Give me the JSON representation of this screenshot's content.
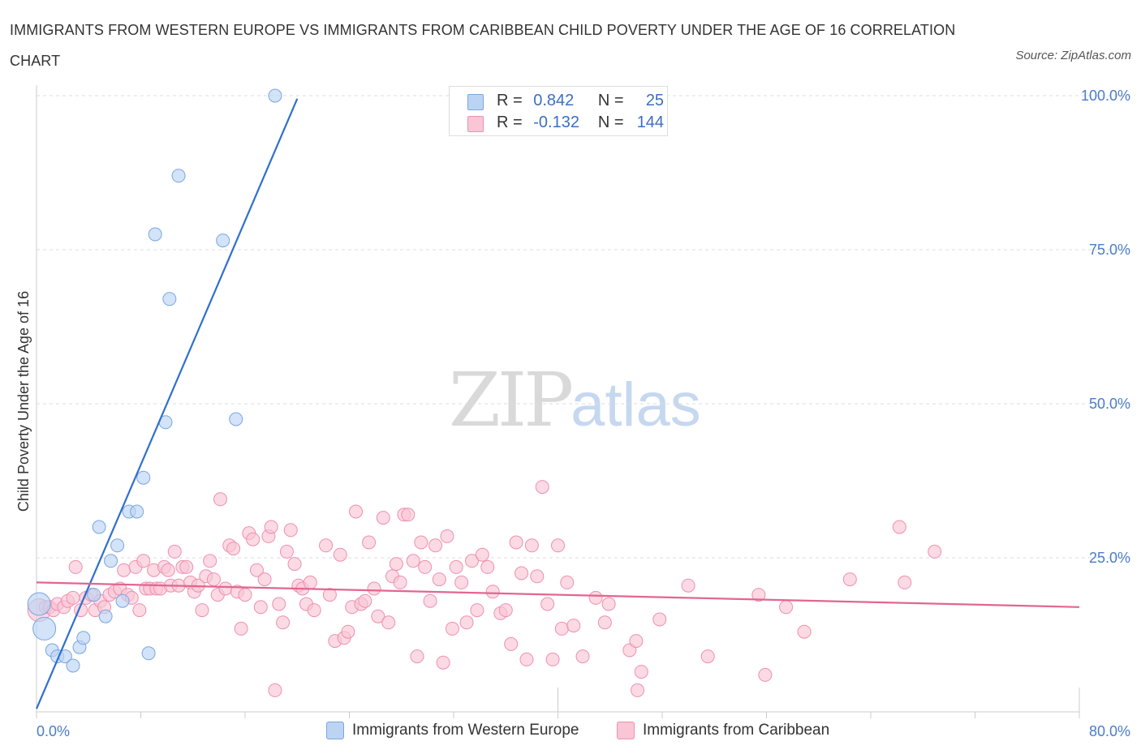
{
  "title": "IMMIGRANTS FROM WESTERN EUROPE VS IMMIGRANTS FROM CARIBBEAN CHILD POVERTY UNDER THE AGE OF 16 CORRELATION CHART",
  "source": "Source: ZipAtlas.com",
  "watermark": {
    "zip": "ZIP",
    "atlas": "atlas"
  },
  "legend_top": [
    {
      "r_label": "R =",
      "r_value": "0.842",
      "n_label": "N =",
      "n_value": "25"
    },
    {
      "r_label": "R =",
      "r_value": "-0.132",
      "n_label": "N =",
      "n_value": "144"
    }
  ],
  "colors": {
    "blue_fill": "#bcd4f4",
    "blue_stroke": "#7aa6e0",
    "blue_line": "#2f6fcf",
    "pink_fill": "#f9c6d6",
    "pink_stroke": "#ee8fb0",
    "pink_line": "#e2668f",
    "grid": "#dddddd",
    "tick_text": "#4a7cc9"
  },
  "chart_data": {
    "type": "scatter",
    "title": "IMMIGRANTS FROM WESTERN EUROPE VS IMMIGRANTS FROM CARIBBEAN CHILD POVERTY UNDER THE AGE OF 16 CORRELATION CHART",
    "xlabel": "",
    "ylabel": "Child Poverty Under the Age of 16",
    "xlim": [
      0,
      80
    ],
    "ylim": [
      0,
      100
    ],
    "x_tick_labels": [
      "0.0%",
      "80.0%"
    ],
    "y_tick_labels": [
      "25.0%",
      "50.0%",
      "75.0%",
      "100.0%"
    ],
    "y_ticks": [
      25,
      50,
      75,
      100
    ],
    "grid": "horizontal dashed",
    "legend_position": "bottom",
    "series": [
      {
        "name": "Immigrants from Western Europe",
        "color": "blue",
        "r": 0.842,
        "n": 25,
        "trend": {
          "x": [
            0,
            20
          ],
          "y": [
            0.5,
            99.5
          ]
        },
        "points": [
          {
            "x": 0.2,
            "y": 17.5,
            "big": true
          },
          {
            "x": 0.6,
            "y": 13.5,
            "big": true
          },
          {
            "x": 1.2,
            "y": 10
          },
          {
            "x": 1.6,
            "y": 9
          },
          {
            "x": 2.2,
            "y": 9
          },
          {
            "x": 2.8,
            "y": 7.5
          },
          {
            "x": 3.3,
            "y": 10.5
          },
          {
            "x": 3.6,
            "y": 12
          },
          {
            "x": 4.4,
            "y": 19
          },
          {
            "x": 4.8,
            "y": 30
          },
          {
            "x": 5.3,
            "y": 15.5
          },
          {
            "x": 5.7,
            "y": 24.5
          },
          {
            "x": 6.2,
            "y": 27
          },
          {
            "x": 6.6,
            "y": 18
          },
          {
            "x": 7.1,
            "y": 32.5
          },
          {
            "x": 7.7,
            "y": 32.5
          },
          {
            "x": 8.2,
            "y": 38
          },
          {
            "x": 8.6,
            "y": 9.5
          },
          {
            "x": 9.1,
            "y": 77.5
          },
          {
            "x": 9.9,
            "y": 47
          },
          {
            "x": 10.2,
            "y": 67
          },
          {
            "x": 10.9,
            "y": 87
          },
          {
            "x": 14.3,
            "y": 76.5
          },
          {
            "x": 15.3,
            "y": 47.5
          },
          {
            "x": 18.3,
            "y": 100
          }
        ]
      },
      {
        "name": "Immigrants from Caribbean",
        "color": "pink",
        "r": -0.132,
        "n": 144,
        "trend": {
          "x": [
            0,
            80
          ],
          "y": [
            21,
            17
          ]
        },
        "points": [
          {
            "x": 0.2,
            "y": 16.5,
            "big": true
          },
          {
            "x": 0.7,
            "y": 17
          },
          {
            "x": 1.0,
            "y": 17
          },
          {
            "x": 1.3,
            "y": 16.5
          },
          {
            "x": 1.6,
            "y": 17.5
          },
          {
            "x": 2.1,
            "y": 17
          },
          {
            "x": 2.4,
            "y": 18
          },
          {
            "x": 2.8,
            "y": 18.5
          },
          {
            "x": 3.0,
            "y": 23.5
          },
          {
            "x": 3.4,
            "y": 16.5
          },
          {
            "x": 3.8,
            "y": 18.5
          },
          {
            "x": 4.2,
            "y": 19
          },
          {
            "x": 4.5,
            "y": 16.5
          },
          {
            "x": 4.9,
            "y": 18
          },
          {
            "x": 5.2,
            "y": 17
          },
          {
            "x": 5.6,
            "y": 19
          },
          {
            "x": 6.0,
            "y": 19.5
          },
          {
            "x": 6.4,
            "y": 20
          },
          {
            "x": 6.7,
            "y": 23
          },
          {
            "x": 7.0,
            "y": 19
          },
          {
            "x": 7.3,
            "y": 18.5
          },
          {
            "x": 7.6,
            "y": 23.5
          },
          {
            "x": 7.9,
            "y": 16.5
          },
          {
            "x": 8.2,
            "y": 24.5
          },
          {
            "x": 8.4,
            "y": 20
          },
          {
            "x": 8.7,
            "y": 20
          },
          {
            "x": 9.0,
            "y": 23
          },
          {
            "x": 9.2,
            "y": 20
          },
          {
            "x": 9.5,
            "y": 20
          },
          {
            "x": 9.8,
            "y": 23.5
          },
          {
            "x": 10.1,
            "y": 23
          },
          {
            "x": 10.3,
            "y": 20.5
          },
          {
            "x": 10.6,
            "y": 26
          },
          {
            "x": 10.9,
            "y": 20.5
          },
          {
            "x": 11.2,
            "y": 23.5
          },
          {
            "x": 11.5,
            "y": 23.5
          },
          {
            "x": 11.8,
            "y": 21
          },
          {
            "x": 12.1,
            "y": 19.5
          },
          {
            "x": 12.4,
            "y": 20.5
          },
          {
            "x": 12.7,
            "y": 16.5
          },
          {
            "x": 13.0,
            "y": 22
          },
          {
            "x": 13.3,
            "y": 24.5
          },
          {
            "x": 13.6,
            "y": 21.5
          },
          {
            "x": 13.9,
            "y": 19
          },
          {
            "x": 14.1,
            "y": 34.5
          },
          {
            "x": 14.5,
            "y": 20
          },
          {
            "x": 14.8,
            "y": 27
          },
          {
            "x": 15.1,
            "y": 26.5
          },
          {
            "x": 15.4,
            "y": 19.5
          },
          {
            "x": 15.7,
            "y": 13.5
          },
          {
            "x": 16.0,
            "y": 19
          },
          {
            "x": 16.3,
            "y": 29
          },
          {
            "x": 16.6,
            "y": 28
          },
          {
            "x": 16.9,
            "y": 23
          },
          {
            "x": 17.2,
            "y": 17
          },
          {
            "x": 17.5,
            "y": 21.5
          },
          {
            "x": 17.8,
            "y": 28.5
          },
          {
            "x": 18.0,
            "y": 30
          },
          {
            "x": 18.3,
            "y": 3.5
          },
          {
            "x": 18.6,
            "y": 17.5
          },
          {
            "x": 18.9,
            "y": 14.5
          },
          {
            "x": 19.2,
            "y": 26
          },
          {
            "x": 19.5,
            "y": 29.5
          },
          {
            "x": 19.8,
            "y": 24
          },
          {
            "x": 20.1,
            "y": 20.5
          },
          {
            "x": 20.4,
            "y": 20
          },
          {
            "x": 20.7,
            "y": 17.5
          },
          {
            "x": 21.0,
            "y": 21
          },
          {
            "x": 21.3,
            "y": 16.5
          },
          {
            "x": 22.2,
            "y": 27
          },
          {
            "x": 22.5,
            "y": 19
          },
          {
            "x": 22.9,
            "y": 11.5
          },
          {
            "x": 23.3,
            "y": 25.5
          },
          {
            "x": 23.6,
            "y": 12
          },
          {
            "x": 23.9,
            "y": 13
          },
          {
            "x": 24.2,
            "y": 17
          },
          {
            "x": 24.5,
            "y": 32.5
          },
          {
            "x": 24.9,
            "y": 17.5
          },
          {
            "x": 25.2,
            "y": 18
          },
          {
            "x": 25.5,
            "y": 27.5
          },
          {
            "x": 25.9,
            "y": 20
          },
          {
            "x": 26.2,
            "y": 15.5
          },
          {
            "x": 26.6,
            "y": 31.5
          },
          {
            "x": 27.0,
            "y": 14.5
          },
          {
            "x": 27.3,
            "y": 22
          },
          {
            "x": 27.6,
            "y": 24
          },
          {
            "x": 27.9,
            "y": 21
          },
          {
            "x": 28.2,
            "y": 32
          },
          {
            "x": 28.5,
            "y": 32
          },
          {
            "x": 28.9,
            "y": 24.5
          },
          {
            "x": 29.2,
            "y": 9
          },
          {
            "x": 29.5,
            "y": 27.5
          },
          {
            "x": 29.8,
            "y": 23.5
          },
          {
            "x": 30.2,
            "y": 18
          },
          {
            "x": 30.6,
            "y": 27
          },
          {
            "x": 30.9,
            "y": 21.5
          },
          {
            "x": 31.2,
            "y": 8
          },
          {
            "x": 31.5,
            "y": 28.5
          },
          {
            "x": 31.9,
            "y": 13.5
          },
          {
            "x": 32.2,
            "y": 23.5
          },
          {
            "x": 32.6,
            "y": 21
          },
          {
            "x": 33.0,
            "y": 14.5
          },
          {
            "x": 33.4,
            "y": 24.5
          },
          {
            "x": 33.8,
            "y": 16.5
          },
          {
            "x": 34.2,
            "y": 25.5
          },
          {
            "x": 34.6,
            "y": 23.5
          },
          {
            "x": 35.0,
            "y": 19.5
          },
          {
            "x": 35.6,
            "y": 16
          },
          {
            "x": 36.0,
            "y": 16.5
          },
          {
            "x": 36.4,
            "y": 11
          },
          {
            "x": 36.8,
            "y": 27.5
          },
          {
            "x": 37.2,
            "y": 22.5
          },
          {
            "x": 37.6,
            "y": 8.5
          },
          {
            "x": 38.0,
            "y": 27
          },
          {
            "x": 38.4,
            "y": 22
          },
          {
            "x": 38.8,
            "y": 36.5
          },
          {
            "x": 39.2,
            "y": 17.5
          },
          {
            "x": 39.6,
            "y": 8.5
          },
          {
            "x": 40.0,
            "y": 27
          },
          {
            "x": 40.3,
            "y": 13.5
          },
          {
            "x": 40.7,
            "y": 21
          },
          {
            "x": 41.2,
            "y": 14
          },
          {
            "x": 41.9,
            "y": 9
          },
          {
            "x": 42.9,
            "y": 18.5
          },
          {
            "x": 43.9,
            "y": 17.5
          },
          {
            "x": 43.6,
            "y": 14.5
          },
          {
            "x": 45.5,
            "y": 10
          },
          {
            "x": 46.0,
            "y": 11.5
          },
          {
            "x": 46.4,
            "y": 6.5
          },
          {
            "x": 46.1,
            "y": 3.5
          },
          {
            "x": 47.8,
            "y": 15
          },
          {
            "x": 50.0,
            "y": 20.5
          },
          {
            "x": 51.5,
            "y": 9
          },
          {
            "x": 55.4,
            "y": 19
          },
          {
            "x": 55.9,
            "y": 6
          },
          {
            "x": 57.5,
            "y": 17
          },
          {
            "x": 58.9,
            "y": 13
          },
          {
            "x": 62.4,
            "y": 21.5
          },
          {
            "x": 66.2,
            "y": 30
          },
          {
            "x": 66.6,
            "y": 21
          },
          {
            "x": 68.9,
            "y": 26
          }
        ]
      }
    ]
  },
  "legend_bottom": [
    {
      "label": "Immigrants from Western Europe"
    },
    {
      "label": "Immigrants from Caribbean"
    }
  ]
}
